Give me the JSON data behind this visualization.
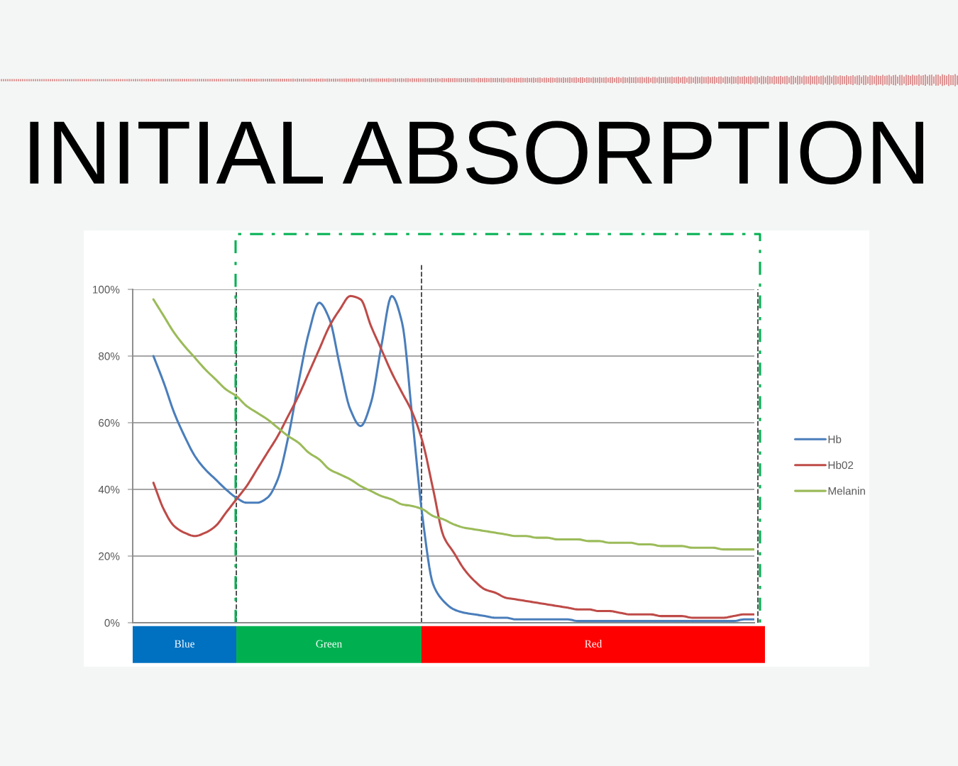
{
  "chart_data": {
    "type": "line",
    "title": "INITIAL ABSORPTION",
    "categories": [
      null,
      null,
      null,
      null,
      null,
      null,
      null,
      null,
      null,
      null,
      null,
      null,
      null,
      null,
      null,
      null,
      null,
      null,
      null,
      null,
      null,
      null,
      null,
      null,
      null,
      null,
      null,
      null,
      null,
      null,
      null,
      null,
      null,
      null,
      null,
      null,
      null,
      null,
      null,
      null,
      null,
      null,
      null,
      null,
      null,
      null,
      null,
      null,
      null,
      null,
      null,
      null,
      null,
      null,
      null,
      null,
      null,
      null,
      null
    ],
    "series": [
      {
        "name": "Hb",
        "color": "#4a7ebb",
        "values": [
          80,
          72,
          63,
          56,
          50,
          46,
          43,
          40,
          37.5,
          36,
          36,
          37.5,
          43,
          55.5,
          72,
          87,
          96,
          91,
          77,
          64,
          59,
          66,
          83,
          98,
          90,
          61,
          31,
          11.5,
          6.5,
          4,
          3,
          2.5,
          2,
          1.5,
          1.5,
          1,
          1,
          1,
          1,
          1,
          1,
          0.5,
          0.5,
          0.5,
          0.5,
          0.5,
          0.5,
          0.5,
          0.5,
          0.5,
          0.5,
          0.5,
          0.5,
          0.5,
          0.5,
          0.5,
          0.5,
          1,
          1
        ]
      },
      {
        "name": "Hb02",
        "color": "#be4b48",
        "values": [
          42,
          34,
          29,
          27,
          26,
          27,
          29,
          33,
          37,
          41,
          46,
          51,
          56,
          62,
          68,
          75,
          82,
          89,
          94,
          98,
          97,
          89,
          82,
          75,
          69,
          63,
          54,
          40,
          26,
          21,
          16,
          12.5,
          10,
          9,
          7.5,
          7,
          6.5,
          6,
          5.5,
          5,
          4.5,
          4,
          4,
          3.5,
          3.5,
          3,
          2.5,
          2.5,
          2.5,
          2,
          2,
          2,
          1.5,
          1.5,
          1.5,
          1.5,
          2,
          2.5,
          2.5
        ]
      },
      {
        "name": "Melanin",
        "color": "#9bbb59",
        "values": [
          97,
          92,
          87,
          83,
          79.5,
          76,
          73,
          70,
          68,
          65,
          63,
          61,
          58.5,
          56,
          54,
          51,
          49,
          46,
          44.5,
          43,
          41,
          39.5,
          38,
          37,
          35.5,
          35,
          34,
          32,
          31,
          29.5,
          28.5,
          28,
          27.5,
          27,
          26.5,
          26,
          26,
          25.5,
          25.5,
          25,
          25,
          25,
          24.5,
          24.5,
          24,
          24,
          24,
          23.5,
          23.5,
          23,
          23,
          23,
          22.5,
          22.5,
          22.5,
          22,
          22,
          22,
          22
        ]
      }
    ],
    "ylim": [
      0,
      100
    ],
    "yticks": [
      {
        "value": 0,
        "label": "0%"
      },
      {
        "value": 20,
        "label": "20%"
      },
      {
        "value": 40,
        "label": "40%"
      },
      {
        "value": 60,
        "label": "60%"
      },
      {
        "value": 80,
        "label": "80%"
      },
      {
        "value": 100,
        "label": "100%"
      }
    ],
    "grid": "y",
    "legend": "right",
    "line_style": "solid",
    "tick_labels": "y",
    "annotations": [
      "Blue",
      "Green",
      "Red"
    ]
  }
}
